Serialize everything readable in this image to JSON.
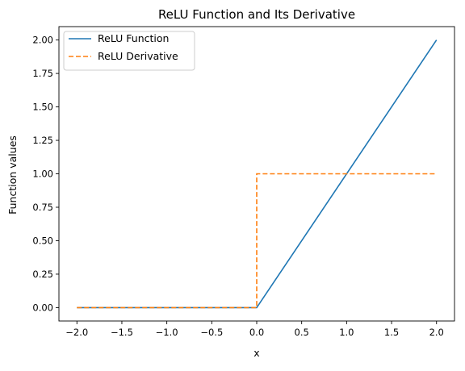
{
  "chart_data": {
    "type": "line",
    "title": "ReLU Function and Its Derivative",
    "xlabel": "x",
    "ylabel": "Function values",
    "xlim": [
      -2.2,
      2.2
    ],
    "ylim": [
      -0.1,
      2.1
    ],
    "xticks": [
      -2.0,
      -1.5,
      -1.0,
      -0.5,
      0.0,
      0.5,
      1.0,
      1.5,
      2.0
    ],
    "xtick_labels": [
      "−2.0",
      "−1.5",
      "−1.0",
      "−0.5",
      "0.0",
      "0.5",
      "1.0",
      "1.5",
      "2.0"
    ],
    "yticks": [
      0.0,
      0.25,
      0.5,
      0.75,
      1.0,
      1.25,
      1.5,
      1.75,
      2.0
    ],
    "ytick_labels": [
      "0.00",
      "0.25",
      "0.50",
      "0.75",
      "1.00",
      "1.25",
      "1.50",
      "1.75",
      "2.00"
    ],
    "grid": false,
    "legend_position": "upper-left",
    "series": [
      {
        "name": "ReLU Function",
        "color": "#1f77b4",
        "style": "solid",
        "x": [
          -2.0,
          0.0,
          2.0
        ],
        "y": [
          0.0,
          0.0,
          2.0
        ]
      },
      {
        "name": "ReLU Derivative",
        "color": "#ff7f0e",
        "style": "dashed",
        "x": [
          -2.0,
          0.0,
          0.0,
          2.0
        ],
        "y": [
          0.0,
          0.0,
          1.0,
          1.0
        ]
      }
    ]
  }
}
